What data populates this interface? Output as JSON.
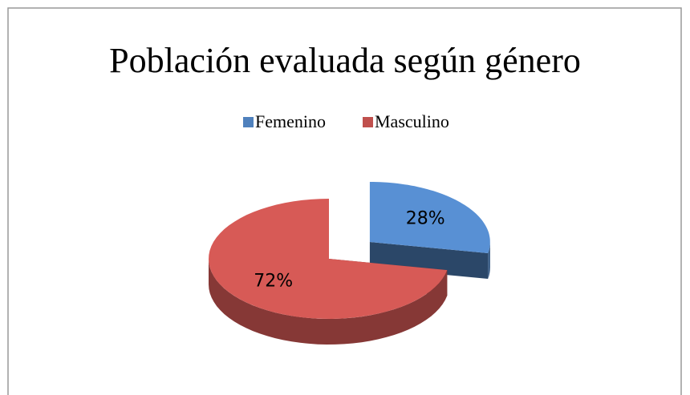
{
  "chart_data": {
    "type": "pie",
    "title": "Población evaluada según género",
    "categories": [
      "Femenino",
      "Masculino"
    ],
    "values": [
      28,
      72
    ],
    "value_labels": [
      "28%",
      "72%"
    ],
    "colors": [
      "#4f81bd",
      "#c0504d"
    ],
    "legend": "top",
    "exploded": [
      true,
      false
    ]
  }
}
